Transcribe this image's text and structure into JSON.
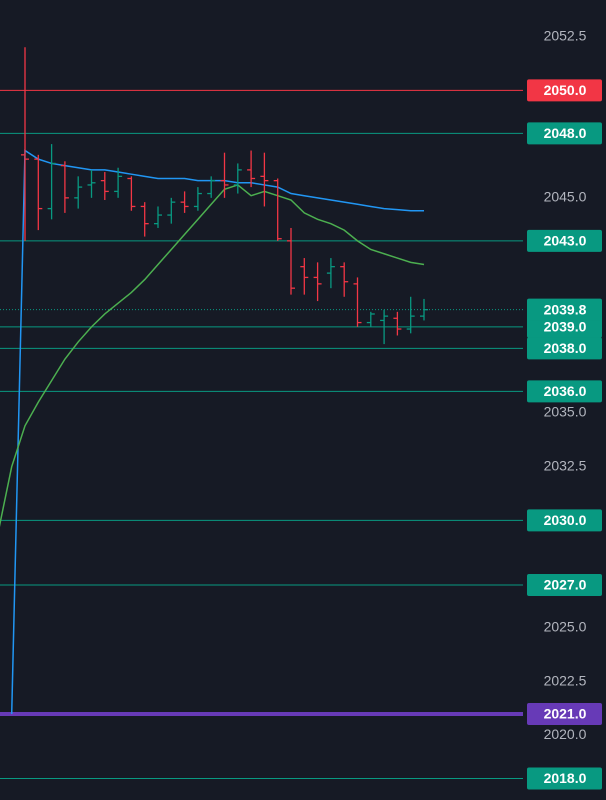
{
  "chart_data": {
    "type": "ohlc",
    "ylim": [
      2017.0,
      2054.2
    ],
    "yticks": [
      {
        "value": 2052.5,
        "label": "2052.5"
      },
      {
        "value": 2045,
        "label": "2045.0"
      },
      {
        "value": 2035,
        "label": "2035.0"
      },
      {
        "value": 2032.5,
        "label": "2032.5"
      },
      {
        "value": 2025,
        "label": "2025.0"
      },
      {
        "value": 2022.5,
        "label": "2022.5"
      },
      {
        "value": 2020,
        "label": "2020.0"
      }
    ],
    "up_color": "#089981",
    "down_color": "#f23645",
    "open": [
      null,
      null,
      2047.0,
      2046.8,
      2044.5,
      2046.5,
      2045.0,
      2045.6,
      2045.8,
      2045.3,
      2045.9,
      2044.6,
      2043.8,
      2044.2,
      2044.8,
      2044.6,
      2045.2,
      2045.8,
      2045.6,
      2046.3,
      2046.0,
      2045.8,
      2043.0,
      2041.8,
      2041.3,
      2041.5,
      2041.8,
      2041.0,
      2039.2,
      2039.3,
      2039.4,
      2038.9,
      2039.5
    ],
    "high": [
      null,
      null,
      2052.0,
      2047.0,
      2047.5,
      2046.7,
      2046.0,
      2046.3,
      2046.2,
      2046.4,
      2046.0,
      2044.8,
      2044.6,
      2045.0,
      2045.3,
      2045.5,
      2046.0,
      2047.1,
      2046.6,
      2047.2,
      2047.1,
      2045.9,
      2043.6,
      2042.2,
      2042.0,
      2042.2,
      2042.0,
      2041.3,
      2039.7,
      2039.8,
      2039.7,
      2040.4,
      2040.3
    ],
    "low": [
      null,
      null,
      2043.0,
      2043.5,
      2044.0,
      2044.3,
      2044.5,
      2045.0,
      2044.9,
      2045.0,
      2044.4,
      2043.2,
      2043.6,
      2043.8,
      2044.3,
      2044.4,
      2045.0,
      2045.0,
      2045.2,
      2045.5,
      2044.6,
      2043.0,
      2040.5,
      2040.5,
      2040.2,
      2040.8,
      2040.4,
      2039.0,
      2039.0,
      2038.2,
      2038.6,
      2038.7,
      2039.3
    ],
    "close": [
      null,
      null,
      2046.8,
      2044.5,
      2046.6,
      2045.0,
      2045.5,
      2045.7,
      2045.3,
      2046.0,
      2044.6,
      2043.8,
      2044.2,
      2044.8,
      2044.6,
      2045.2,
      2045.8,
      2045.6,
      2046.3,
      2045.9,
      2045.8,
      2043.1,
      2040.8,
      2041.3,
      2041.0,
      2041.8,
      2041.1,
      2039.2,
      2039.6,
      2039.5,
      2038.9,
      2039.5,
      2039.8
    ],
    "series": [
      {
        "color": "#2196f3",
        "values": [
          null,
          2021.0,
          2047.2,
          2046.8,
          2046.6,
          2046.5,
          2046.4,
          2046.3,
          2046.3,
          2046.2,
          2046.1,
          2046.0,
          2045.9,
          2045.9,
          2045.9,
          2045.8,
          2045.8,
          2045.8,
          2045.7,
          2045.7,
          2045.6,
          2045.5,
          2045.2,
          2045.1,
          2045.0,
          2044.9,
          2044.8,
          2044.7,
          2044.6,
          2044.5,
          2044.45,
          2044.4,
          2044.4
        ]
      },
      {
        "color": "#4caf50",
        "values": [
          2029.5,
          2032.5,
          2034.4,
          2035.5,
          2036.5,
          2037.5,
          2038.3,
          2039.0,
          2039.6,
          2040.1,
          2040.6,
          2041.2,
          2041.9,
          2042.6,
          2043.3,
          2044.0,
          2044.7,
          2045.4,
          2045.6,
          2045.1,
          2045.3,
          2045.1,
          2044.9,
          2044.3,
          2044.0,
          2043.8,
          2043.5,
          2043.0,
          2042.6,
          2042.4,
          2042.2,
          2042.0,
          2041.9
        ]
      }
    ],
    "levels": {
      "values": [
        2050.0,
        2048.0,
        2043.0,
        2039.0,
        2038.0,
        2036.0,
        2030.0,
        2027.0,
        2021.0,
        2018.0
      ],
      "value_labels": [
        "2050.0",
        "2048.0",
        "2043.0",
        "2039.0",
        "2038.0",
        "2036.0",
        "2030.0",
        "2027.0",
        "2021.0",
        "2018.0"
      ],
      "colors": [
        "#f23645",
        "#089981",
        "#089981",
        "#089981",
        "#089981",
        "#089981",
        "#089981",
        "#089981",
        "#673ab7",
        "#089981"
      ]
    },
    "current_price": {
      "value": 2039.8,
      "label": "2039.8",
      "color": "#089981"
    }
  }
}
